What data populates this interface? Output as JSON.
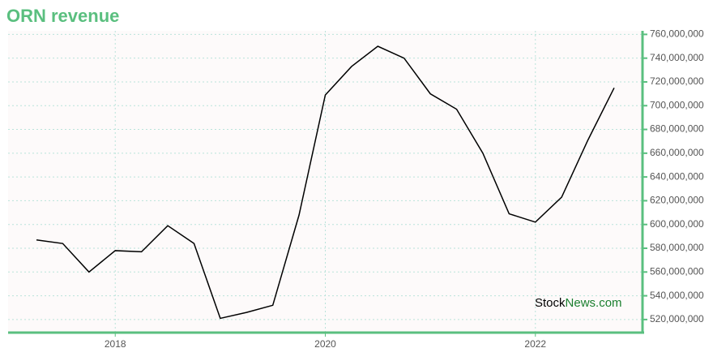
{
  "chart_data": {
    "type": "line",
    "title": "ORN revenue",
    "watermark": [
      "Stock",
      "News.com"
    ],
    "x": [
      2017.25,
      2017.5,
      2017.75,
      2018,
      2018.25,
      2018.5,
      2018.75,
      2019,
      2019.25,
      2019.5,
      2019.75,
      2020,
      2020.25,
      2020.5,
      2020.75,
      2021,
      2021.25,
      2021.5,
      2021.75,
      2022,
      2022.25,
      2022.5,
      2022.75
    ],
    "series": [
      {
        "color": "#000000",
        "values": [
          587000000,
          584000000,
          560000000,
          578000000,
          577000000,
          599000000,
          584000000,
          521000000,
          526000000,
          532000000,
          608000000,
          709000000,
          733000000,
          750000000,
          740000000,
          710000000,
          697000000,
          660000000,
          609000000,
          602000000,
          623000000,
          671000000,
          715000000
        ]
      }
    ],
    "xlim": [
      2016.98,
      2023.02
    ],
    "xticks": [
      2018,
      2020,
      2022
    ],
    "ylim": [
      509000000,
      763000000
    ],
    "yticks": [
      {
        "value": 520000000,
        "label": "520,000,000"
      },
      {
        "value": 540000000,
        "label": "540,000,000"
      },
      {
        "value": 560000000,
        "label": "560,000,000"
      },
      {
        "value": 580000000,
        "label": "580,000,000"
      },
      {
        "value": 600000000,
        "label": "600,000,000"
      },
      {
        "value": 620000000,
        "label": "620,000,000"
      },
      {
        "value": 640000000,
        "label": "640,000,000"
      },
      {
        "value": 660000000,
        "label": "660,000,000"
      },
      {
        "value": 680000000,
        "label": "680,000,000"
      },
      {
        "value": 700000000,
        "label": "700,000,000"
      },
      {
        "value": 720000000,
        "label": "720,000,000"
      },
      {
        "value": 740000000,
        "label": "740,000,000"
      },
      {
        "value": 760000000,
        "label": "760,000,000"
      }
    ],
    "grid": true,
    "axis_color": "#5abf7f",
    "title_color": "#5abf7f"
  }
}
